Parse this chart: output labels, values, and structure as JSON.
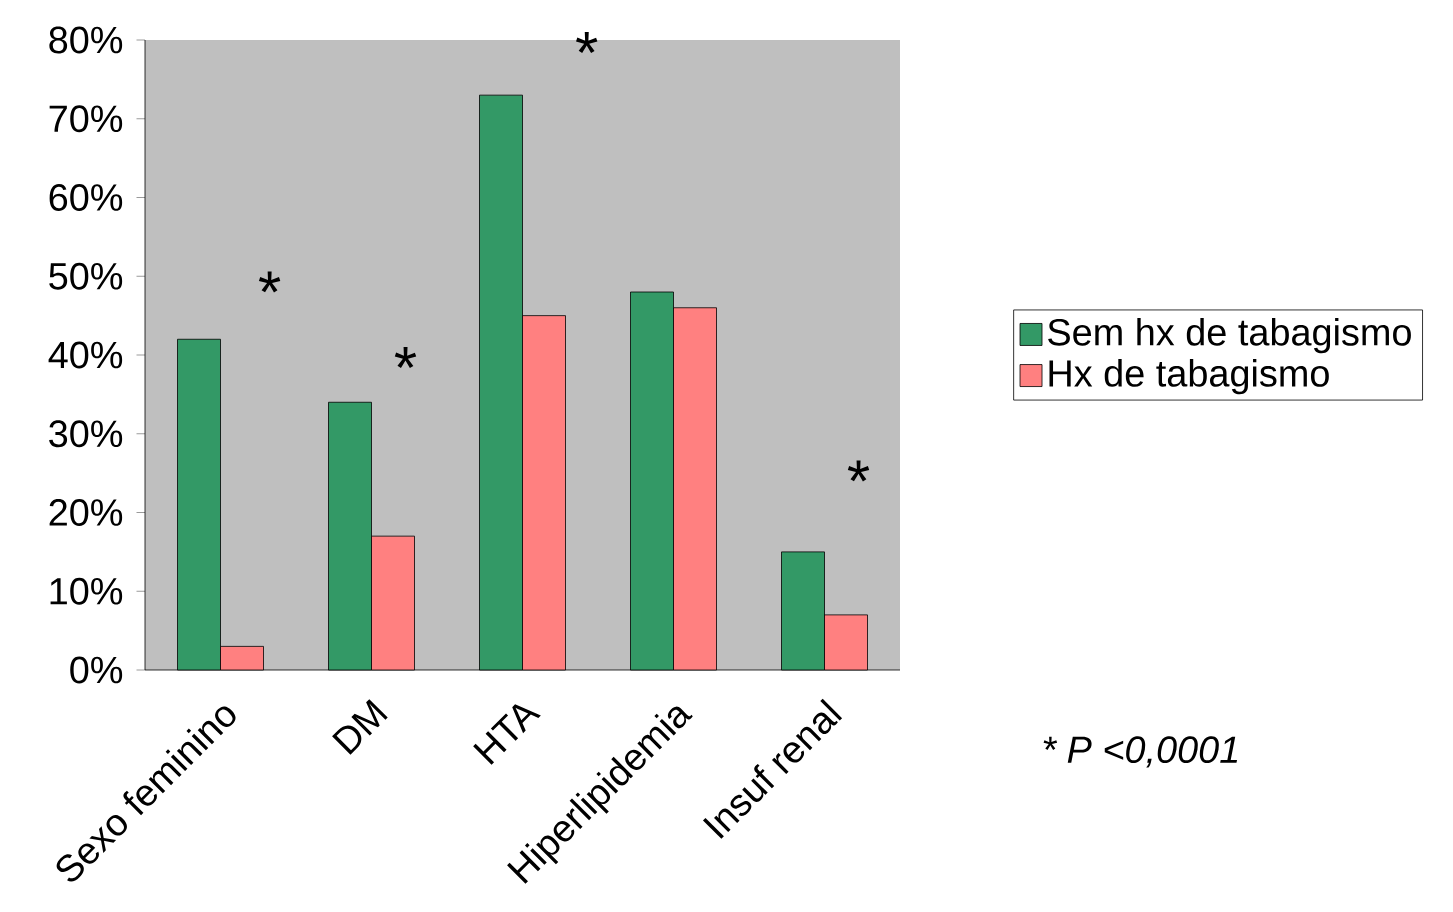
{
  "chart_data": {
    "type": "bar",
    "categories": [
      "Sexo feminino",
      "DM",
      "HTA",
      "Hiperlipidemia",
      "Insuf renal"
    ],
    "series": [
      {
        "name": "Sem hx de tabagismo",
        "color": "#339966",
        "values": [
          42,
          34,
          73,
          48,
          15
        ]
      },
      {
        "name": "Hx de tabagismo",
        "color": "#ff8080",
        "values": [
          3,
          17,
          45,
          46,
          7
        ]
      }
    ],
    "ylim": [
      0,
      80
    ],
    "yticks": [
      {
        "value": 0,
        "label": "0%"
      },
      {
        "value": 10,
        "label": "10%"
      },
      {
        "value": 20,
        "label": "20%"
      },
      {
        "value": 30,
        "label": "30%"
      },
      {
        "value": 40,
        "label": "40%"
      },
      {
        "value": 50,
        "label": "50%"
      },
      {
        "value": 60,
        "label": "60%"
      },
      {
        "value": 70,
        "label": "70%"
      },
      {
        "value": 80,
        "label": "80%"
      }
    ],
    "legend": "right",
    "annotations": [
      "*",
      "*",
      "*",
      "*",
      "* P <0,0001"
    ]
  }
}
